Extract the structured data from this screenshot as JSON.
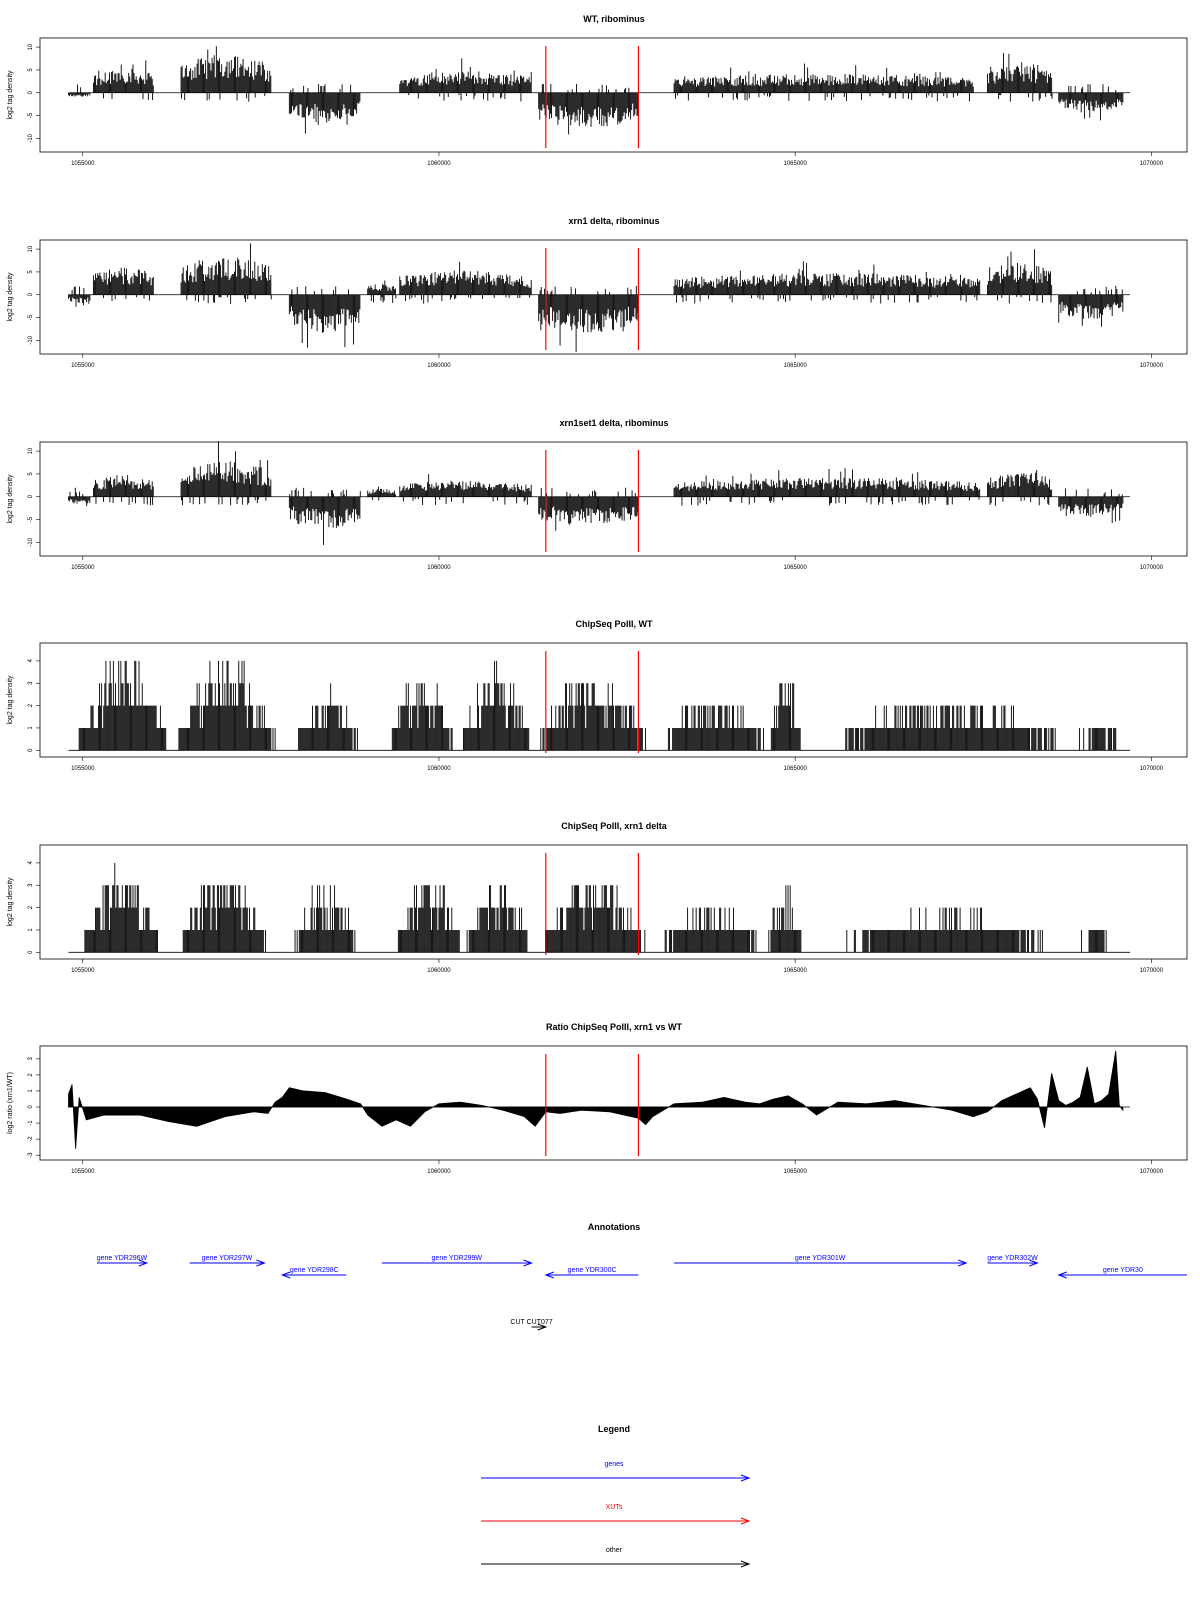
{
  "chart_data": [
    {
      "type": "bar",
      "title": "WT, ribominus",
      "ylabel": "log2 tag density",
      "xlim": [
        1054400,
        1070500
      ],
      "ylim": [
        -13,
        12
      ],
      "yticks": [
        -10,
        -5,
        0,
        5,
        10
      ],
      "ytick_labels": [
        "-10",
        "-5",
        "0",
        "5",
        "10"
      ],
      "xticks": [
        1055000,
        1060000,
        1065000,
        1070000
      ],
      "xtick_labels": [
        "1055000",
        "1060000",
        "1065000",
        "1070000"
      ],
      "markers": [
        1061500,
        1062800
      ],
      "series": [
        {
          "segments": [
            {
              "x0": 1054800,
              "x1": 1055100,
              "amp": 0.8,
              "sign": -1
            },
            {
              "x0": 1055150,
              "x1": 1056000,
              "amp": 4.5,
              "sign": 1
            },
            {
              "x0": 1056380,
              "x1": 1057650,
              "amp": 7.0,
              "sign": 1
            },
            {
              "x0": 1057900,
              "x1": 1058900,
              "amp": 5.5,
              "sign": -1
            },
            {
              "x0": 1059450,
              "x1": 1061300,
              "amp": 4.0,
              "sign": 1
            },
            {
              "x0": 1061400,
              "x1": 1062800,
              "amp": 6.5,
              "sign": -1
            },
            {
              "x0": 1063300,
              "x1": 1067500,
              "amp": 3.5,
              "sign": 1
            },
            {
              "x0": 1067700,
              "x1": 1068600,
              "amp": 5.0,
              "sign": 1
            },
            {
              "x0": 1068700,
              "x1": 1069600,
              "amp": 3.5,
              "sign": -1
            }
          ]
        }
      ]
    },
    {
      "type": "bar",
      "title": "xrn1 delta, ribominus",
      "ylabel": "log2 tag density",
      "xlim": [
        1054400,
        1070500
      ],
      "ylim": [
        -13,
        12
      ],
      "yticks": [
        -10,
        -5,
        0,
        5,
        10
      ],
      "ytick_labels": [
        "-10",
        "-5",
        "0",
        "5",
        "10"
      ],
      "xticks": [
        1055000,
        1060000,
        1065000,
        1070000
      ],
      "xtick_labels": [
        "1055000",
        "1060000",
        "1065000",
        "1070000"
      ],
      "markers": [
        1061500,
        1062800
      ],
      "series": [
        {
          "segments": [
            {
              "x0": 1054800,
              "x1": 1055100,
              "amp": 1.5,
              "sign": -1
            },
            {
              "x0": 1055150,
              "x1": 1056000,
              "amp": 5.0,
              "sign": 1
            },
            {
              "x0": 1056380,
              "x1": 1057650,
              "amp": 7.0,
              "sign": 1
            },
            {
              "x0": 1057900,
              "x1": 1058900,
              "amp": 7.0,
              "sign": -1
            },
            {
              "x0": 1059000,
              "x1": 1059400,
              "amp": 2.0,
              "sign": 1
            },
            {
              "x0": 1059450,
              "x1": 1061300,
              "amp": 4.5,
              "sign": 1
            },
            {
              "x0": 1061400,
              "x1": 1062800,
              "amp": 7.0,
              "sign": -1
            },
            {
              "x0": 1063300,
              "x1": 1067600,
              "amp": 4.0,
              "sign": 1
            },
            {
              "x0": 1067700,
              "x1": 1068600,
              "amp": 6.0,
              "sign": 1
            },
            {
              "x0": 1068700,
              "x1": 1069600,
              "amp": 4.5,
              "sign": -1
            }
          ]
        }
      ]
    },
    {
      "type": "bar",
      "title": "xrn1set1 delta, ribominus",
      "ylabel": "log2 tag density",
      "xlim": [
        1054400,
        1070500
      ],
      "ylim": [
        -13,
        12
      ],
      "yticks": [
        -10,
        -5,
        0,
        5,
        10
      ],
      "ytick_labels": [
        "-10",
        "-5",
        "0",
        "5",
        "10"
      ],
      "xticks": [
        1055000,
        1060000,
        1065000,
        1070000
      ],
      "xtick_labels": [
        "1055000",
        "1060000",
        "1065000",
        "1070000"
      ],
      "markers": [
        1061500,
        1062800
      ],
      "series": [
        {
          "segments": [
            {
              "x0": 1054800,
              "x1": 1055100,
              "amp": 1.5,
              "sign": -1
            },
            {
              "x0": 1055150,
              "x1": 1056000,
              "amp": 4.0,
              "sign": 1
            },
            {
              "x0": 1056380,
              "x1": 1057650,
              "amp": 6.5,
              "sign": 1
            },
            {
              "x0": 1057900,
              "x1": 1058900,
              "amp": 6.0,
              "sign": -1
            },
            {
              "x0": 1059000,
              "x1": 1059400,
              "amp": 1.5,
              "sign": 1
            },
            {
              "x0": 1059450,
              "x1": 1061300,
              "amp": 3.0,
              "sign": 1
            },
            {
              "x0": 1061400,
              "x1": 1062800,
              "amp": 5.5,
              "sign": -1
            },
            {
              "x0": 1063300,
              "x1": 1067600,
              "amp": 3.5,
              "sign": 1
            },
            {
              "x0": 1067700,
              "x1": 1068600,
              "amp": 4.5,
              "sign": 1
            },
            {
              "x0": 1068700,
              "x1": 1069600,
              "amp": 3.5,
              "sign": -1
            }
          ]
        }
      ]
    },
    {
      "type": "bar",
      "title": "ChipSeq PolII, WT",
      "ylabel": "log2 tag density",
      "xlim": [
        1054400,
        1070500
      ],
      "ylim": [
        -0.3,
        4.8
      ],
      "yticks": [
        0,
        1,
        2,
        3,
        4
      ],
      "ytick_labels": [
        "0",
        "1",
        "2",
        "3",
        "4"
      ],
      "xticks": [
        1055000,
        1060000,
        1065000,
        1070000
      ],
      "xtick_labels": [
        "1055000",
        "1060000",
        "1065000",
        "1070000"
      ],
      "markers": [
        1061500,
        1062800
      ],
      "series": [
        {
          "segments": [
            {
              "x0": 1054950,
              "x1": 1056200,
              "amp": 3.8,
              "sign": 1
            },
            {
              "x0": 1056350,
              "x1": 1057700,
              "amp": 3.5,
              "sign": 1
            },
            {
              "x0": 1058000,
              "x1": 1058900,
              "amp": 2.3,
              "sign": 1
            },
            {
              "x0": 1059300,
              "x1": 1060200,
              "amp": 3.0,
              "sign": 1
            },
            {
              "x0": 1060300,
              "x1": 1061300,
              "amp": 3.0,
              "sign": 1
            },
            {
              "x0": 1061400,
              "x1": 1062900,
              "amp": 3.0,
              "sign": 1
            },
            {
              "x0": 1063100,
              "x1": 1064600,
              "amp": 2.0,
              "sign": 1
            },
            {
              "x0": 1064650,
              "x1": 1065100,
              "amp": 3.0,
              "sign": 1
            },
            {
              "x0": 1065500,
              "x1": 1068800,
              "amp": 2.0,
              "sign": 1
            },
            {
              "x0": 1068900,
              "x1": 1069600,
              "amp": 1.0,
              "sign": 1
            }
          ]
        }
      ]
    },
    {
      "type": "bar",
      "title": "ChipSeq PolII, xrn1 delta",
      "ylabel": "log2 tag density",
      "xlim": [
        1054400,
        1070500
      ],
      "ylim": [
        -0.3,
        4.8
      ],
      "yticks": [
        0,
        1,
        2,
        3,
        4
      ],
      "ytick_labels": [
        "0",
        "1",
        "2",
        "3",
        "4"
      ],
      "xticks": [
        1055000,
        1060000,
        1065000,
        1070000
      ],
      "xtick_labels": [
        "1055000",
        "1060000",
        "1065000",
        "1070000"
      ],
      "markers": [
        1061500,
        1062800
      ],
      "series": [
        {
          "segments": [
            {
              "x0": 1055000,
              "x1": 1056100,
              "amp": 3.3,
              "sign": 1
            },
            {
              "x0": 1056350,
              "x1": 1057600,
              "amp": 3.0,
              "sign": 1
            },
            {
              "x0": 1057950,
              "x1": 1058850,
              "amp": 2.6,
              "sign": 1
            },
            {
              "x0": 1059400,
              "x1": 1060300,
              "amp": 3.0,
              "sign": 1
            },
            {
              "x0": 1060350,
              "x1": 1061300,
              "amp": 2.8,
              "sign": 1
            },
            {
              "x0": 1061450,
              "x1": 1062900,
              "amp": 2.9,
              "sign": 1
            },
            {
              "x0": 1063100,
              "x1": 1064500,
              "amp": 1.8,
              "sign": 1
            },
            {
              "x0": 1064600,
              "x1": 1065100,
              "amp": 2.5,
              "sign": 1
            },
            {
              "x0": 1065500,
              "x1": 1068800,
              "amp": 1.5,
              "sign": 1
            },
            {
              "x0": 1068900,
              "x1": 1069600,
              "amp": 0.8,
              "sign": 1
            }
          ]
        }
      ]
    },
    {
      "type": "area",
      "title": "Ratio ChipSeq PolII, xrn1 vs WT",
      "ylabel": "log2 ratio (xrn1/WT)",
      "xlim": [
        1054400,
        1070500
      ],
      "ylim": [
        -3.3,
        3.8
      ],
      "yticks": [
        -3,
        -2,
        -1,
        0,
        1,
        2,
        3
      ],
      "ytick_labels": [
        "-3",
        "-2",
        "-1",
        "0",
        "1",
        "2",
        "3"
      ],
      "xticks": [
        1055000,
        1060000,
        1065000,
        1070000
      ],
      "xtick_labels": [
        "1055000",
        "1060000",
        "1065000",
        "1070000"
      ],
      "markers": [
        1061500,
        1062800
      ],
      "series": [
        {
          "x": [
            1054800,
            1054850,
            1054900,
            1054950,
            1055050,
            1055300,
            1055800,
            1056200,
            1056600,
            1057000,
            1057400,
            1057600,
            1057700,
            1057800,
            1057900,
            1058100,
            1058400,
            1058700,
            1058900,
            1059000,
            1059200,
            1059400,
            1059600,
            1059800,
            1060000,
            1060300,
            1060600,
            1060900,
            1061200,
            1061350,
            1061500,
            1061700,
            1062000,
            1062400,
            1062800,
            1062900,
            1063000,
            1063300,
            1063700,
            1064000,
            1064300,
            1064500,
            1064700,
            1064900,
            1065100,
            1065300,
            1065600,
            1066000,
            1066400,
            1066800,
            1067200,
            1067500,
            1067700,
            1067900,
            1068100,
            1068300,
            1068400,
            1068500,
            1068600,
            1068700,
            1068800,
            1068900,
            1069000,
            1069100,
            1069200,
            1069300,
            1069400,
            1069500,
            1069550,
            1069600
          ],
          "y": [
            0.8,
            1.4,
            -2.6,
            0.6,
            -0.8,
            -0.5,
            -0.5,
            -0.9,
            -1.2,
            -0.6,
            -0.3,
            -0.4,
            0.3,
            0.6,
            1.2,
            1.0,
            0.9,
            0.5,
            0.2,
            -0.5,
            -1.2,
            -0.8,
            -1.2,
            -0.3,
            0.2,
            0.3,
            0.1,
            -0.2,
            -0.6,
            -1.2,
            -0.3,
            -0.4,
            -0.2,
            -0.3,
            -0.7,
            -1.1,
            -0.6,
            0.2,
            0.3,
            0.6,
            0.3,
            0.2,
            0.5,
            0.7,
            0.2,
            -0.5,
            0.3,
            0.2,
            0.4,
            0.1,
            -0.2,
            -0.6,
            -0.3,
            0.4,
            0.8,
            1.2,
            0.5,
            -1.3,
            2.1,
            0.4,
            0.1,
            0.3,
            0.6,
            2.5,
            0.2,
            0.4,
            0.8,
            3.5,
            0.1,
            -0.2
          ]
        }
      ]
    }
  ],
  "annotations": {
    "title": "Annotations",
    "genes": [
      {
        "label": "gene YDR296W",
        "x0": 1055200,
        "x1": 1055900,
        "dir": "right",
        "row": 0
      },
      {
        "label": "gene YDR297W",
        "x0": 1056500,
        "x1": 1057550,
        "dir": "right",
        "row": 0
      },
      {
        "label": "gene YDR298C",
        "x0": 1057800,
        "x1": 1058700,
        "dir": "left",
        "row": 1
      },
      {
        "label": "gene YDR299W",
        "x0": 1059200,
        "x1": 1061300,
        "dir": "right",
        "row": 0
      },
      {
        "label": "gene YDR300C",
        "x0": 1061500,
        "x1": 1062800,
        "dir": "left",
        "row": 1
      },
      {
        "label": "gene YDR301W",
        "x0": 1063300,
        "x1": 1067400,
        "dir": "right",
        "row": 0
      },
      {
        "label": "gene YDR302W",
        "x0": 1067700,
        "x1": 1068400,
        "dir": "right",
        "row": 0
      },
      {
        "label": "gene YDR30",
        "x0": 1068700,
        "x1": 1070500,
        "dir": "left",
        "row": 1
      }
    ],
    "other": [
      {
        "label": "CUT CUT077",
        "x0": 1061300,
        "x1": 1061500,
        "dir": "right"
      }
    ]
  },
  "legend": {
    "title": "Legend",
    "items": [
      {
        "label": "genes",
        "color": "#0000ff"
      },
      {
        "label": "XUTs",
        "color": "#ff0000"
      },
      {
        "label": "other",
        "color": "#000000"
      }
    ]
  },
  "colors": {
    "bars": "#000000",
    "marker": "#ff0000",
    "gene": "#0000ff",
    "xut": "#ff0000",
    "other": "#000000"
  }
}
